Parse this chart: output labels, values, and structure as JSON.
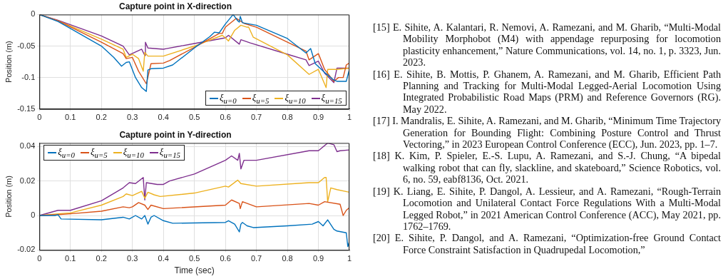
{
  "chart_data": [
    {
      "type": "line",
      "title": "Capture point in X-direction",
      "ylabel": "Position (m)",
      "xlim": [
        0,
        1
      ],
      "xticks": [
        0,
        0.1,
        0.2,
        0.3,
        0.4,
        0.5,
        0.6,
        0.7,
        0.8,
        0.9,
        1
      ],
      "ylim": [
        -0.15,
        0
      ],
      "yticks": [
        -0.15,
        -0.1,
        -0.05,
        0
      ],
      "grid": true,
      "legend": "bottom right",
      "marker": "none",
      "line_style": "solid",
      "series": [
        {
          "name": "ξ$_{u=0}$",
          "color": "#0072bd",
          "x": [
            0,
            0.06,
            0.1,
            0.2,
            0.24,
            0.265,
            0.28,
            0.29,
            0.31,
            0.33,
            0.345,
            0.35,
            0.36,
            0.4,
            0.43,
            0.5,
            0.55,
            0.565,
            0.58,
            0.6,
            0.625,
            0.64,
            0.645,
            0.648,
            0.655,
            0.7,
            0.8,
            0.86,
            0.875,
            0.89,
            0.92,
            0.95,
            0.96,
            0.99,
            1
          ],
          "values": [
            0,
            -0.011,
            -0.022,
            -0.05,
            -0.068,
            -0.082,
            -0.076,
            -0.075,
            -0.1,
            -0.116,
            -0.122,
            -0.088,
            -0.086,
            -0.085,
            -0.08,
            -0.053,
            -0.035,
            -0.028,
            -0.029,
            -0.015,
            0,
            -0.01,
            -0.012,
            -0.003,
            -0.013,
            -0.017,
            -0.038,
            -0.061,
            -0.054,
            -0.078,
            -0.092,
            -0.104,
            -0.106,
            -0.106,
            -0.087
          ]
        },
        {
          "name": "ξ$_{u=5}$",
          "color": "#d95319",
          "x": [
            0,
            0.06,
            0.2,
            0.27,
            0.28,
            0.3,
            0.32,
            0.345,
            0.36,
            0.4,
            0.42,
            0.5,
            0.58,
            0.59,
            0.6,
            0.635,
            0.66,
            0.7,
            0.86,
            0.87,
            0.9,
            0.92,
            0.95,
            0.965,
            0.98,
            0.99,
            1
          ],
          "values": [
            0,
            -0.01,
            -0.044,
            -0.062,
            -0.07,
            -0.068,
            -0.09,
            -0.11,
            -0.078,
            -0.077,
            -0.073,
            -0.052,
            -0.03,
            -0.03,
            -0.02,
            -0.006,
            -0.014,
            -0.02,
            -0.058,
            -0.072,
            -0.062,
            -0.087,
            -0.106,
            -0.1,
            -0.1,
            -0.08,
            -0.077
          ]
        },
        {
          "name": "ξ$_{u=10}$",
          "color": "#edb120",
          "x": [
            0,
            0.06,
            0.2,
            0.27,
            0.28,
            0.3,
            0.32,
            0.335,
            0.34,
            0.35,
            0.4,
            0.5,
            0.59,
            0.6,
            0.61,
            0.63,
            0.65,
            0.67,
            0.675,
            0.69,
            0.8,
            0.87,
            0.9,
            0.925,
            0.93,
            0.96,
            1
          ],
          "values": [
            0,
            -0.01,
            -0.039,
            -0.055,
            -0.068,
            -0.063,
            -0.07,
            -0.09,
            -0.06,
            -0.066,
            -0.066,
            -0.05,
            -0.033,
            -0.037,
            -0.042,
            -0.025,
            -0.017,
            -0.02,
            -0.02,
            -0.036,
            -0.064,
            -0.095,
            -0.087,
            -0.116,
            -0.087,
            -0.087,
            -0.085
          ]
        },
        {
          "name": "ξ$_{u=15}$",
          "color": "#7e2f8e",
          "x": [
            0,
            0.06,
            0.2,
            0.27,
            0.29,
            0.33,
            0.34,
            0.342,
            0.35,
            0.4,
            0.41,
            0.5,
            0.6,
            0.61,
            0.64,
            0.645,
            0.65,
            0.68,
            0.8,
            0.86,
            0.87,
            0.9,
            0.92,
            0.95,
            0.96,
            1
          ],
          "values": [
            0,
            -0.009,
            -0.034,
            -0.05,
            -0.064,
            -0.055,
            -0.065,
            -0.044,
            -0.053,
            -0.055,
            -0.054,
            -0.046,
            -0.037,
            -0.033,
            -0.045,
            -0.047,
            -0.04,
            -0.045,
            -0.063,
            -0.072,
            -0.081,
            -0.074,
            -0.093,
            -0.108,
            -0.085,
            -0.085
          ]
        }
      ]
    },
    {
      "type": "line",
      "title": "Capture point in Y-direction",
      "xlabel": "Time (sec)",
      "ylabel": "Position (m)",
      "xlim": [
        0,
        1
      ],
      "xticks": [
        0,
        0.1,
        0.2,
        0.3,
        0.4,
        0.5,
        0.6,
        0.7,
        0.8,
        0.9,
        1
      ],
      "ylim": [
        -0.02,
        0.042
      ],
      "yticks": [
        -0.02,
        0,
        0.02,
        0.04
      ],
      "grid": true,
      "legend": "top left",
      "marker": "none",
      "line_style": "solid",
      "series": [
        {
          "name": "ξ$_{u=0}$",
          "color": "#0072bd",
          "x": [
            0,
            0.05,
            0.06,
            0.07,
            0.2,
            0.27,
            0.29,
            0.31,
            0.33,
            0.34,
            0.35,
            0.36,
            0.37,
            0.4,
            0.43,
            0.6,
            0.61,
            0.63,
            0.645,
            0.65,
            0.655,
            0.67,
            0.69,
            0.8,
            0.88,
            0.9,
            0.915,
            0.93,
            0.95,
            0.96,
            0.99,
            0.995,
            1
          ],
          "values": [
            0,
            0,
            0.0005,
            -0.002,
            -0.0025,
            -0.001,
            -0.002,
            0,
            -0.002,
            0,
            -0.005,
            -0.001,
            0,
            -0.003,
            -0.0045,
            -0.004,
            -0.003,
            -0.005,
            -0.0095,
            -0.005,
            -0.004,
            -0.006,
            -0.007,
            -0.006,
            -0.005,
            -0.0035,
            -0.006,
            -0.0025,
            -0.008,
            -0.009,
            -0.01,
            -0.018,
            -0.015
          ]
        },
        {
          "name": "ξ$_{u=5}$",
          "color": "#d95319",
          "x": [
            0,
            0.06,
            0.1,
            0.2,
            0.27,
            0.29,
            0.3,
            0.32,
            0.34,
            0.35,
            0.36,
            0.4,
            0.6,
            0.62,
            0.645,
            0.648,
            0.655,
            0.7,
            0.87,
            0.9,
            0.92,
            0.97,
            0.98,
            0.99,
            1
          ],
          "values": [
            0,
            0.0005,
            0.001,
            0.0025,
            0.005,
            0.0045,
            0.005,
            0.0075,
            0.006,
            0.0035,
            0.006,
            0.004,
            0.006,
            0.009,
            0.007,
            0.004,
            0.008,
            0.005,
            0.007,
            0.006,
            0.008,
            0.0065,
            0,
            0.003,
            0.0045
          ]
        },
        {
          "name": "ξ$_{u=10}$",
          "color": "#edb120",
          "x": [
            0,
            0.06,
            0.1,
            0.2,
            0.27,
            0.28,
            0.3,
            0.33,
            0.34,
            0.35,
            0.37,
            0.39,
            0.5,
            0.6,
            0.61,
            0.64,
            0.65,
            0.7,
            0.87,
            0.9,
            0.92,
            0.925,
            0.93,
            0.94,
            0.96,
            1
          ],
          "values": [
            0,
            0.001,
            0.0015,
            0.006,
            0.011,
            0.0125,
            0.0115,
            0.014,
            0.01,
            0.0135,
            0.012,
            0.011,
            0.013,
            0.017,
            0.0165,
            0.0205,
            0.0185,
            0.017,
            0.019,
            0.019,
            0.022,
            0.022,
            0.008,
            0.016,
            0.015,
            0.0135
          ]
        },
        {
          "name": "ξ$_{u=15}$",
          "color": "#7e2f8e",
          "x": [
            0,
            0.06,
            0.1,
            0.2,
            0.27,
            0.29,
            0.31,
            0.335,
            0.34,
            0.345,
            0.38,
            0.4,
            0.42,
            0.5,
            0.6,
            0.62,
            0.64,
            0.645,
            0.65,
            0.66,
            0.7,
            0.87,
            0.9,
            0.93,
            0.95,
            0.96,
            0.97,
            1
          ],
          "values": [
            0,
            0.003,
            0.003,
            0.0085,
            0.016,
            0.019,
            0.0185,
            0.022,
            0.009,
            0.019,
            0.018,
            0.018,
            0.02,
            0.024,
            0.032,
            0.0345,
            0.032,
            0.036,
            0.027,
            0.032,
            0.032,
            0.0375,
            0.0375,
            0.042,
            0.041,
            0.037,
            0.0375,
            0.038
          ]
        }
      ]
    },
    {
      "type": "other",
      "annotations": [
        "[15] E. Sihite, A. Kalantari, R. Nemovi, A. Ramezani, and M. Gharib, “Multi-Modal Mobility Morphobot (M4) with appendage repurposing for locomotion plasticity enhancement,” Nature Communications, vol. 14, no. 1, p. 3323, Jun. 2023.",
        "[16] E. Sihite, B. Mottis, P. Ghanem, A. Ramezani, and M. Gharib, Efficient Path Planning and Tracking for Multi-Modal Legged-Aerial Locomotion Using Integrated Probabilistic Road Maps (PRM) and Reference Governors (RG). May 2022.",
        "[17] I. Mandralis, E. Sihite, A. Ramezani, and M. Gharib, “Minimum Time Trajectory Generation for Bounding Flight: Combining Posture Control and Thrust Vectoring,” in 2023 European Control Conference (ECC), Jun. 2023, pp. 1–7.",
        "[18] K. Kim, P. Spieler, E.-S. Lupu, A. Ramezani, and S.-J. Chung, “A bipedal walking robot that can fly, slackline, and skateboard,” Science Robotics, vol. 6, no. 59, eabf8136, Oct. 2021.",
        "[19] K. Liang, E. Sihite, P. Dangol, A. Lessieur, and A. Ramezani, “Rough-Terrain Locomotion and Unilateral Contact Force Regulations With a Multi-Modal Legged Robot,” in 2021 American Control Conference (ACC), May 2021, pp. 1762–1769.",
        "[20] E. Sihite, P. Dangol, and A. Ramezani, “Optimization-free Ground Contact Force Constraint Satisfaction in Quadrupedal Locomotion,”"
      ]
    }
  ]
}
